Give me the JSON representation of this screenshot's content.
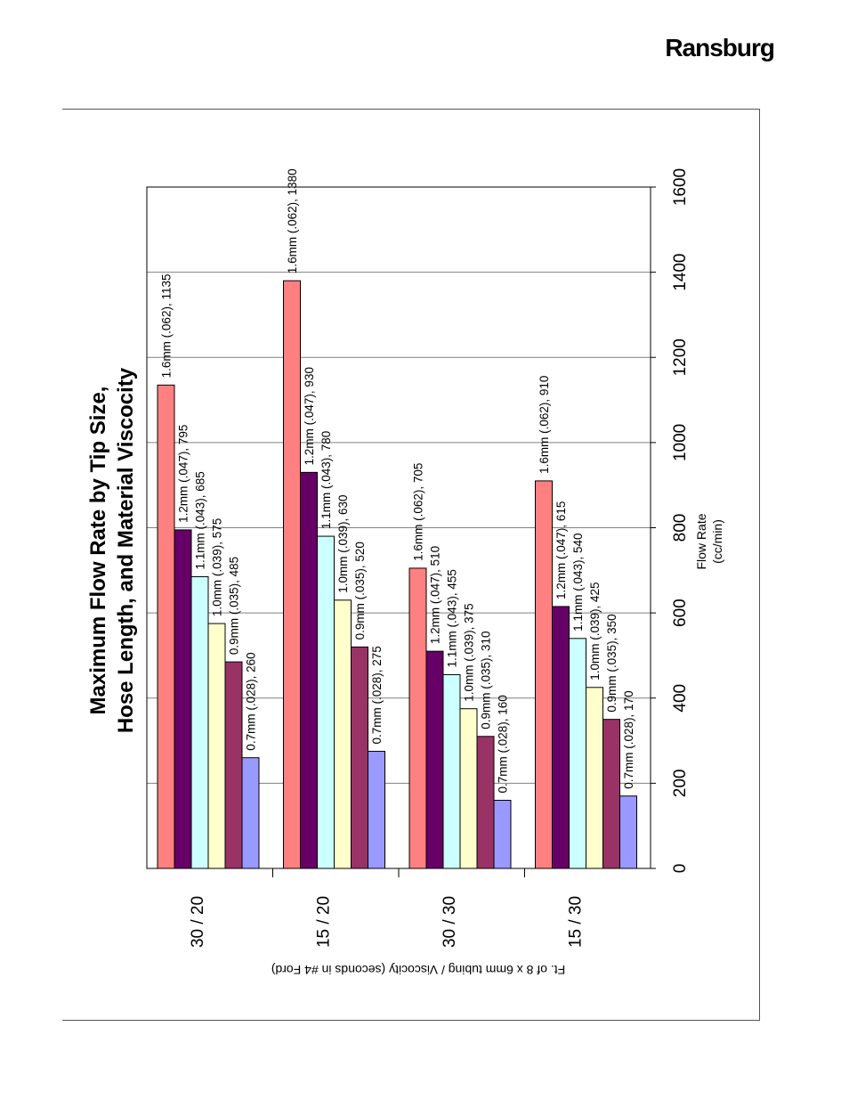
{
  "brand": "Ransburg",
  "chart_data": {
    "type": "bar",
    "orientation": "horizontal-rotated-page",
    "title": [
      "Maximum Flow Rate by Tip Size,",
      "Hose Length, and Material Viscocity"
    ],
    "xlabel": "Ft. of 8 x 6mm tubing / Viscocity (seconds in #4 Ford)",
    "ylabel": [
      "Flow Rate",
      "(cc/min)"
    ],
    "ylim": [
      0,
      1600
    ],
    "yticks": [
      0,
      200,
      400,
      600,
      800,
      1000,
      1200,
      1400,
      1600
    ],
    "grid": true,
    "categories": [
      "30 / 20",
      "15 / 20",
      "30 / 30",
      "15 / 30"
    ],
    "series": [
      {
        "name": "1.6mm (.062)",
        "color": "#ff8080",
        "values": [
          1135,
          1380,
          705,
          910
        ]
      },
      {
        "name": "1.2mm (.047)",
        "color": "#660066",
        "values": [
          795,
          930,
          510,
          615
        ]
      },
      {
        "name": "1.1mm (.043)",
        "color": "#ccffff",
        "values": [
          685,
          780,
          455,
          540
        ]
      },
      {
        "name": "1.0mm (.039)",
        "color": "#ffffcc",
        "values": [
          575,
          630,
          375,
          425
        ]
      },
      {
        "name": "0.9mm (.035)",
        "color": "#993366",
        "values": [
          485,
          520,
          310,
          350
        ]
      },
      {
        "name": "0.7mm (.028)",
        "color": "#9999ff",
        "values": [
          260,
          275,
          160,
          170
        ]
      }
    ],
    "data_labels": [
      [
        "1.6mm (.062), 1135",
        "1.2mm (.047), 795",
        "1.1mm (.043), 685",
        "1.0mm (.039), 575",
        "0.9mm (.035), 485",
        "0.7mm (.028), 260"
      ],
      [
        "1.6mm (.062), 1380",
        "1.2mm (.047), 930",
        "1.1mm (.043), 780",
        "1.0mm (.039), 630",
        "0.9mm (.035), 520",
        "0.7mm (.028), 275"
      ],
      [
        "1.6mm (.062), 705",
        "1.2mm (.047), 510",
        "1.1mm (.043), 455",
        "1.0mm (.039), 375",
        "0.9mm (.035), 310",
        "0.7mm (.028), 160"
      ],
      [
        "1.6mm (.062), 910",
        "1.2mm (.047), 615",
        "1.1mm (.043), 540",
        "1.0mm (.039), 425",
        "0.9mm (.035), 350",
        "0.7mm (.028), 170"
      ]
    ]
  }
}
